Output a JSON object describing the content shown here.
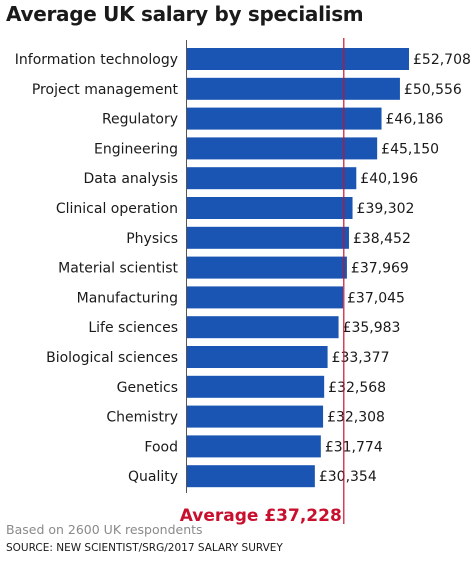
{
  "title": "Average UK salary by specialism",
  "colors": {
    "bar": "#1a55b3",
    "average_line": "#c8102e",
    "average_text": "#c8102e"
  },
  "chart_data": {
    "type": "bar",
    "orientation": "horizontal",
    "title": "Average UK salary by specialism",
    "categories": [
      "Information technology",
      "Project management",
      "Regulatory",
      "Engineering",
      "Data analysis",
      "Clinical operation",
      "Physics",
      "Material scientist",
      "Manufacturing",
      "Life sciences",
      "Biological sciences",
      "Genetics",
      "Chemistry",
      "Food",
      "Quality"
    ],
    "values": [
      52708,
      50556,
      46186,
      45150,
      40196,
      39302,
      38452,
      37969,
      37045,
      35983,
      33377,
      32568,
      32308,
      31774,
      30354
    ],
    "value_labels": [
      "£52,708",
      "£50,556",
      "£46,186",
      "£45,150",
      "£40,196",
      "£39,302",
      "£38,452",
      "£37,969",
      "£37,045",
      "£35,983",
      "£33,377",
      "£32,568",
      "£32,308",
      "£31,774",
      "£30,354"
    ],
    "average": {
      "value": 37228,
      "label": "Average £37,228"
    },
    "xlim": [
      0,
      52708
    ],
    "grid": false,
    "legend": "none"
  },
  "footer": {
    "note": "Based on 2600 UK respondents",
    "source": "SOURCE: NEW SCIENTIST/SRG/2017 SALARY SURVEY"
  }
}
